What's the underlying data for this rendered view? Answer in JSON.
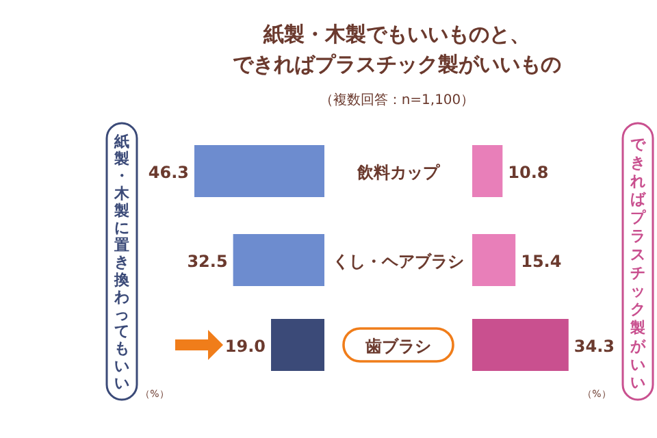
{
  "chart_data": [
    {
      "type": "bar",
      "orientation": "horizontal",
      "title": "紙製・木製でもいいものと、できればプラスチック製がいいもの",
      "subtitle": "（複数回答：n=1,100）",
      "categories": [
        "飲料カップ",
        "くし・ヘアブラシ",
        "歯ブラシ"
      ],
      "annotations": [
        "（%）"
      ],
      "series": [
        {
          "name": "紙製・木製に置き換わってもいい",
          "colors": [
            "#6d8ccf",
            "#6d8ccf",
            "#3b4a78"
          ],
          "values": [
            46.3,
            32.5,
            19.0
          ],
          "value_labels": [
            "46.3",
            "32.5",
            "19.0"
          ]
        }
      ]
    },
    {
      "type": "bar",
      "orientation": "horizontal",
      "annotations": [
        "（%）"
      ],
      "series": [
        {
          "name": "できればプラスチック製がいい",
          "colors": [
            "#e87fb9",
            "#e87fb9",
            "#c9508f"
          ],
          "values": [
            10.8,
            15.4,
            34.3
          ],
          "value_labels": [
            "10.8",
            "15.4",
            "34.3"
          ]
        }
      ]
    }
  ]
}
